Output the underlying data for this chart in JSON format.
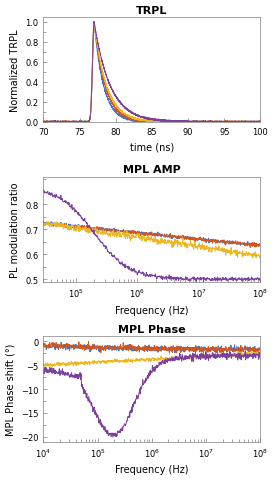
{
  "title1": "TRPL",
  "title2": "MPL AMP",
  "title3": "MPL Phase",
  "xlabel1": "time (ns)",
  "xlabel2": "Frequency (Hz)",
  "xlabel3": "Frequency (Hz)",
  "ylabel1": "Normalized TRPL",
  "ylabel2": "PL modulation ratio",
  "ylabel3": "MPL Phase shift (°)",
  "colors": [
    "#4472c4",
    "#d4551a",
    "#edb620",
    "#7b3f9e"
  ],
  "trpl_xlim": [
    70,
    100
  ],
  "trpl_ylim": [
    0,
    1.05
  ],
  "trpl_yticks": [
    0,
    0.2,
    0.4,
    0.6,
    0.8,
    1.0
  ],
  "trpl_xticks": [
    70,
    75,
    80,
    85,
    90,
    95,
    100
  ],
  "amp_xlim": [
    30000.0,
    100000000.0
  ],
  "amp_ylim": [
    0.49,
    0.91
  ],
  "amp_yticks": [
    0.5,
    0.6,
    0.7,
    0.8
  ],
  "phase_xlim": [
    10000.0,
    100000000.0
  ],
  "phase_ylim": [
    -21,
    1
  ],
  "phase_yticks": [
    0,
    -5,
    -10,
    -15,
    -20
  ]
}
